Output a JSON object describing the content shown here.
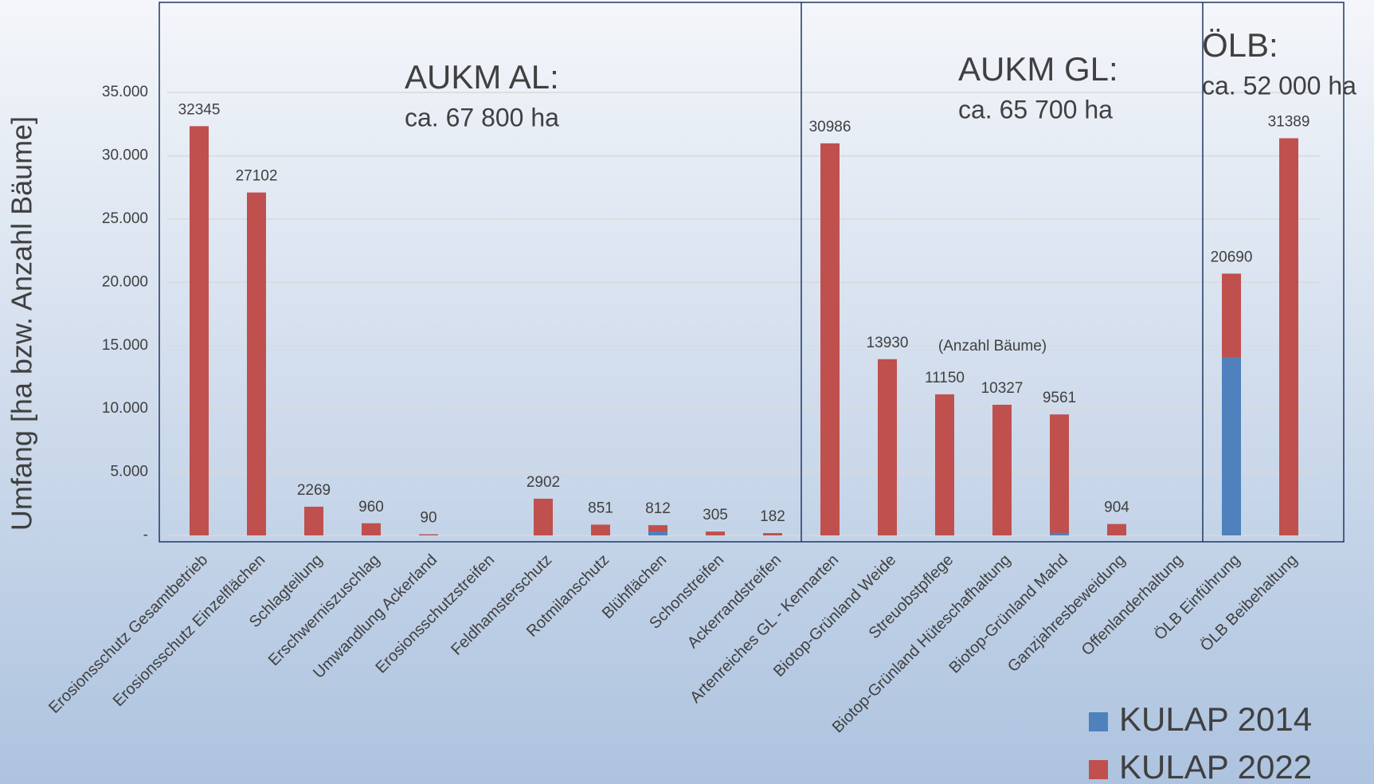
{
  "chart_data": {
    "type": "bar",
    "overlap": true,
    "y_label": "Umfang [ha bzw. Anzahl Bäume]",
    "categories": [
      "Erosionsschutz Gesamtbetrieb",
      "Erosionsschutz Einzelflächen",
      "Schlagteilung",
      "Erschwerniszuschlag",
      "Umwandlung Ackerland",
      "Erosionsschutzstreifen",
      "Feldhamsterschutz",
      "Rotmilanschutz",
      "Blühflächen",
      "Schonstreifen",
      "Ackerrandstreifen",
      "Artenreiches GL - Kennarten",
      "Biotop-Grünland Weide",
      "Streuobstpflege",
      "Biotop-Grünland Hüteschafhaltung",
      "Biotop-Grünland Mahd",
      "Ganzjahresbeweidung",
      "Offenlanderhaltung",
      "ÖLB Einführung",
      "ÖLB Beibehaltung"
    ],
    "series": [
      {
        "name": "KULAP 2022",
        "color": "#c0504d",
        "labels": true,
        "values": [
          32345,
          27102,
          2269,
          960,
          90,
          null,
          2902,
          851,
          812,
          305,
          182,
          30986,
          13930,
          11150,
          10327,
          9561,
          904,
          null,
          20690,
          31389
        ]
      },
      {
        "name": "KULAP 2014",
        "color": "#4f81bd",
        "labels": false,
        "values": [
          0,
          0,
          0,
          0,
          0,
          null,
          0,
          0,
          300,
          0,
          0,
          0,
          0,
          0,
          0,
          200,
          0,
          null,
          14100,
          0
        ]
      }
    ],
    "value_note": {
      "index": 13,
      "text": "(Anzahl Bäume)"
    },
    "groups": [
      {
        "title": "AUKM AL:",
        "subtitle": "ca. 67 800 ha"
      },
      {
        "title": "AUKM GL:",
        "subtitle": "ca. 65 700 ha"
      },
      {
        "title": "ÖLB:",
        "subtitle": "ca. 52 000 ha"
      }
    ],
    "ylim": [
      0,
      42000
    ],
    "yticks": [
      {
        "value": 0,
        "label": "-"
      },
      {
        "value": 5000,
        "label": "5.000"
      },
      {
        "value": 10000,
        "label": "10.000"
      },
      {
        "value": 15000,
        "label": "15.000"
      },
      {
        "value": 20000,
        "label": "20.000"
      },
      {
        "value": 25000,
        "label": "25.000"
      },
      {
        "value": 30000,
        "label": "30.000"
      },
      {
        "value": 35000,
        "label": "35.000"
      }
    ],
    "grid": true,
    "legend": "bottom-right"
  }
}
